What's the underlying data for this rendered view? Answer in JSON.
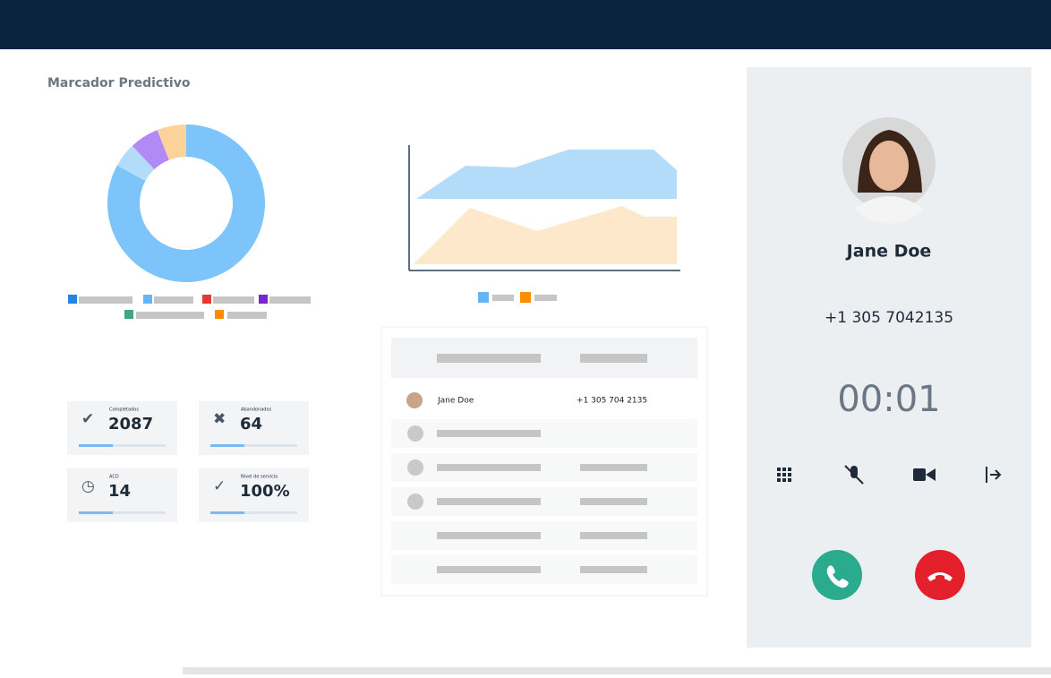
{
  "header": {
    "title": "Marcador Predictivo"
  },
  "donut": {
    "values": [
      83,
      5,
      6,
      6
    ],
    "colors": [
      "#7cc4fa",
      "#b3dcfb",
      "#b28af5",
      "#fdd29a"
    ]
  },
  "stats": [
    {
      "label": "Completados",
      "value": "2087"
    },
    {
      "label": "Abandonados",
      "value": "64"
    },
    {
      "label": "ACD",
      "value": "14"
    },
    {
      "label": "Nivel de servicio",
      "value": "100%"
    }
  ],
  "table": {
    "rows": [
      [
        "Jane Doe",
        "+1 305 704 2135"
      ]
    ]
  },
  "call": {
    "name": "Jane Doe",
    "phone": "+1 305 7042135",
    "timer": "00:01"
  }
}
